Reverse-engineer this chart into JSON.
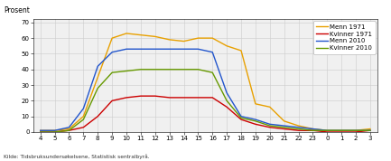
{
  "x_labels": [
    "4",
    "5",
    "6",
    "7",
    "8",
    "9",
    "10",
    "11",
    "12",
    "13",
    "14",
    "15",
    "16",
    "17",
    "18",
    "19",
    "20",
    "21",
    "22",
    "23",
    "0",
    "1",
    "2",
    "3"
  ],
  "x_values": [
    4,
    5,
    6,
    7,
    8,
    9,
    10,
    11,
    12,
    13,
    14,
    15,
    16,
    17,
    18,
    19,
    20,
    21,
    22,
    23,
    24,
    25,
    26,
    27
  ],
  "menn1971": [
    1,
    1,
    2,
    10,
    35,
    60,
    63,
    62,
    61,
    59,
    58,
    60,
    60,
    55,
    52,
    18,
    16,
    7,
    4,
    2,
    1,
    1,
    1,
    2
  ],
  "kvinner1971": [
    0,
    0,
    1,
    3,
    10,
    20,
    22,
    23,
    23,
    22,
    22,
    22,
    22,
    16,
    8,
    5,
    3,
    2,
    1,
    1,
    0,
    0,
    0,
    1
  ],
  "menn2010": [
    1,
    1,
    3,
    15,
    42,
    51,
    53,
    53,
    53,
    53,
    53,
    53,
    51,
    25,
    10,
    8,
    5,
    4,
    3,
    2,
    1,
    1,
    1,
    1
  ],
  "kvinner2010": [
    0,
    0,
    1,
    8,
    28,
    38,
    39,
    40,
    40,
    40,
    40,
    40,
    38,
    20,
    9,
    7,
    4,
    3,
    2,
    1,
    1,
    1,
    1,
    1
  ],
  "colors": {
    "menn1971": "#E8A000",
    "kvinner1971": "#CC0000",
    "menn2010": "#2255CC",
    "kvinner2010": "#669900"
  },
  "legend_labels": [
    "Menn 1971",
    "Kvinner 1971",
    "Menn 2010",
    "Kvinner 2010"
  ],
  "ylabel": "Prosent",
  "ylim": [
    0,
    72
  ],
  "yticks": [
    0,
    10,
    20,
    30,
    40,
    50,
    60,
    70
  ],
  "source": "Kilde: Tidsbruksundersøkelsene, Statistisk sentralbyrå.",
  "bg_color": "#f0f0f0",
  "grid_color": "#cccccc"
}
